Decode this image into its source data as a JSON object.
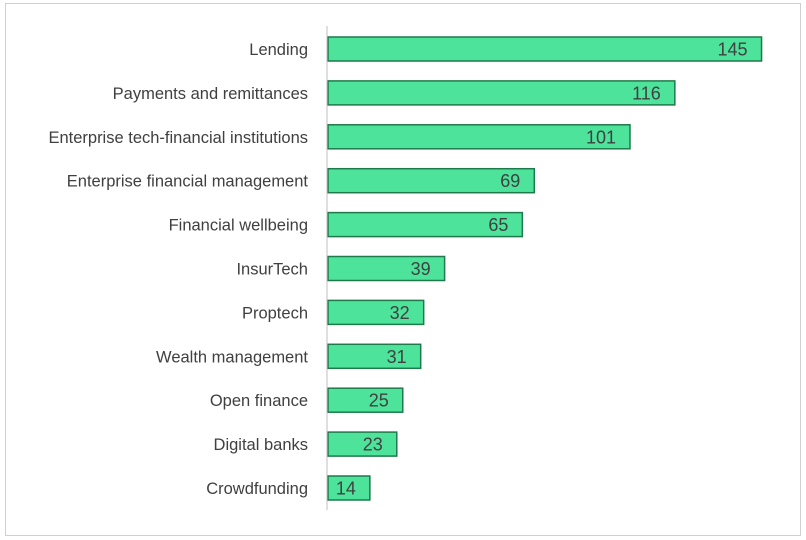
{
  "chart_data": {
    "type": "bar",
    "orientation": "horizontal",
    "title": "",
    "xlabel": "",
    "ylabel": "",
    "categories": [
      "Lending",
      "Payments and remittances",
      "Enterprise tech-financial institutions",
      "Enterprise financial management",
      "Financial wellbeing",
      "InsurTech",
      "Proptech",
      "Wealth management",
      "Open finance",
      "Digital banks",
      "Crowdfunding"
    ],
    "values": [
      145,
      116,
      101,
      69,
      65,
      39,
      32,
      31,
      25,
      23,
      14
    ],
    "xlim": [
      0,
      150
    ],
    "grid": false,
    "legend": "none",
    "data_labels": "inside-end",
    "bar_color": "#4de39b",
    "bar_border_color": "#1e7a4a",
    "axis_color": "#bfbfbf",
    "text_color": "#404040"
  }
}
